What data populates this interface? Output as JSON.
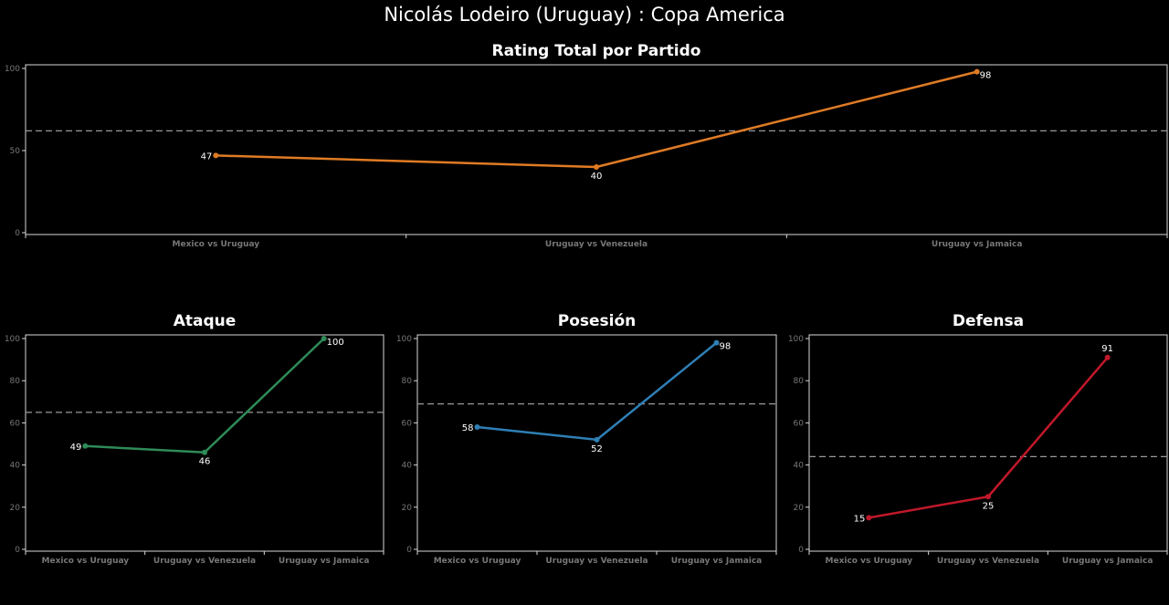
{
  "page": {
    "title": "Nicolás Lodeiro (Uruguay) :  Copa  America"
  },
  "chart_data": [
    {
      "id": "total",
      "type": "line",
      "title": "Rating Total por Partido",
      "categories": [
        "Mexico vs Uruguay",
        "Uruguay vs Venezuela",
        "Uruguay vs Jamaica"
      ],
      "values": [
        47,
        40,
        98
      ],
      "value_labels": [
        "47",
        "40",
        "98"
      ],
      "ylim": [
        0,
        100
      ],
      "yticks": [
        0,
        50,
        100
      ],
      "reference_line": 62,
      "color": "#e07b24"
    },
    {
      "id": "ataque",
      "type": "line",
      "title": "Ataque",
      "categories": [
        "Mexico vs Uruguay",
        "Uruguay vs Venezuela",
        "Uruguay vs Jamaica"
      ],
      "values": [
        49,
        46,
        100
      ],
      "value_labels": [
        "49",
        "46",
        "100"
      ],
      "ylim": [
        0,
        100
      ],
      "yticks": [
        0,
        20,
        40,
        60,
        80,
        100
      ],
      "reference_line": 65,
      "color": "#2e8b57"
    },
    {
      "id": "posesion",
      "type": "line",
      "title": "Posesión",
      "categories": [
        "Mexico vs Uruguay",
        "Uruguay vs Venezuela",
        "Uruguay vs Jamaica"
      ],
      "values": [
        58,
        52,
        98
      ],
      "value_labels": [
        "58",
        "52",
        "98"
      ],
      "ylim": [
        0,
        100
      ],
      "yticks": [
        0,
        20,
        40,
        60,
        80,
        100
      ],
      "reference_line": 69,
      "color": "#2f7fb5"
    },
    {
      "id": "defensa",
      "type": "line",
      "title": "Defensa",
      "categories": [
        "Mexico vs Uruguay",
        "Uruguay vs Venezuela",
        "Uruguay vs Jamaica"
      ],
      "values": [
        15,
        25,
        91
      ],
      "value_labels": [
        "15",
        "25",
        "91"
      ],
      "ylim": [
        0,
        100
      ],
      "yticks": [
        0,
        20,
        40,
        60,
        80,
        100
      ],
      "reference_line": 44,
      "color": "#c0182a"
    }
  ]
}
